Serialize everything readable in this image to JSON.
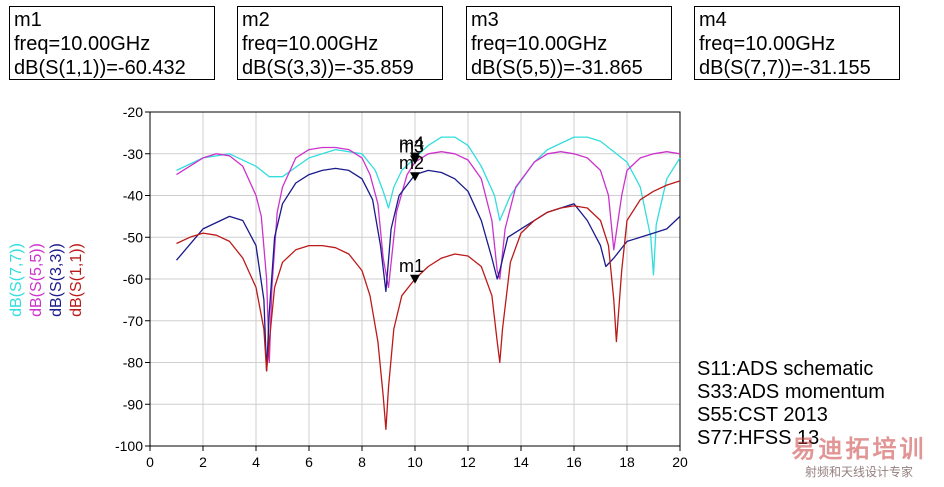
{
  "markers_info": [
    {
      "id": "m1",
      "freq_text": "freq=10.00GHz",
      "value_text": "dB(S(1,1))=-60.432"
    },
    {
      "id": "m2",
      "freq_text": "freq=10.00GHz",
      "value_text": "dB(S(3,3))=-35.859"
    },
    {
      "id": "m3",
      "freq_text": "freq=10.00GHz",
      "value_text": "dB(S(5,5))=-31.865"
    },
    {
      "id": "m4",
      "freq_text": "freq=10.00GHz",
      "value_text": "dB(S(7,7))=-31.155"
    }
  ],
  "notes": [
    "S11:ADS schematic",
    "S33:ADS momentum",
    "S55:CST 2013",
    "S77:HFSS 13"
  ],
  "watermark": {
    "main": "易迪拓培训",
    "sub": "射频和天线设计专家"
  },
  "chart_data": {
    "type": "line",
    "title": "",
    "xlabel": "",
    "xlim": [
      0,
      20
    ],
    "ylim": [
      -100,
      -20
    ],
    "xticks": [
      0,
      2,
      4,
      6,
      8,
      10,
      12,
      14,
      16,
      18,
      20
    ],
    "yticks": [
      -100,
      -90,
      -80,
      -70,
      -60,
      -50,
      -40,
      -30,
      -20
    ],
    "grid": true,
    "series": [
      {
        "name": "dB(S(7,7))",
        "color": "#33dddd",
        "x": [
          1.0,
          2.0,
          3.0,
          4.0,
          4.5,
          5.0,
          6.0,
          7.0,
          8.0,
          8.5,
          8.8,
          9.0,
          9.2,
          9.5,
          10.0,
          10.5,
          11.0,
          11.5,
          12.0,
          12.5,
          13.0,
          13.2,
          13.6,
          14.5,
          15.0,
          16.0,
          16.5,
          17.0,
          18.0,
          18.5,
          18.9,
          19.0,
          19.1,
          19.5,
          20.0
        ],
        "y": [
          -34,
          -31,
          -30,
          -33,
          -35.5,
          -35.5,
          -31,
          -29,
          -30,
          -34,
          -39,
          -43,
          -38,
          -34,
          -31,
          -28,
          -26,
          -26,
          -28,
          -33,
          -40,
          -46,
          -40,
          -32,
          -29,
          -26,
          -26,
          -27,
          -32,
          -38,
          -50,
          -59,
          -47,
          -36,
          -31
        ]
      },
      {
        "name": "dB(S(5,5))",
        "color": "#cc33cc",
        "x": [
          1.0,
          2.0,
          2.5,
          3.0,
          3.5,
          4.0,
          4.2,
          4.4,
          4.5,
          4.6,
          4.8,
          5.0,
          5.5,
          6.0,
          6.5,
          7.0,
          7.5,
          8.0,
          8.3,
          8.6,
          8.8,
          9.0,
          9.3,
          9.7,
          10.0,
          10.5,
          11.0,
          11.5,
          12.0,
          12.5,
          12.9,
          13.1,
          13.2,
          13.4,
          13.8,
          14.5,
          15.0,
          15.5,
          16.0,
          16.5,
          17.0,
          17.3,
          17.5,
          17.8,
          18.0,
          18.5,
          19.0,
          19.5,
          20.0
        ],
        "y": [
          -35,
          -31,
          -30,
          -30.5,
          -33,
          -40,
          -45,
          -60,
          -80,
          -62,
          -44,
          -38,
          -31,
          -29,
          -28.5,
          -28.5,
          -29,
          -31,
          -35,
          -42,
          -55,
          -62,
          -44,
          -35,
          -32,
          -30,
          -29.5,
          -30,
          -31.5,
          -36,
          -46,
          -58,
          -60,
          -48,
          -38,
          -32,
          -30,
          -29.5,
          -30,
          -31,
          -34,
          -40,
          -53,
          -40,
          -34,
          -31,
          -30,
          -29.5,
          -30
        ]
      },
      {
        "name": "dB(S(3,3))",
        "color": "#1a1a8c",
        "x": [
          1.0,
          2.0,
          3.0,
          3.5,
          4.0,
          4.3,
          4.4,
          4.5,
          4.7,
          5.0,
          5.5,
          6.0,
          6.5,
          7.0,
          7.5,
          8.0,
          8.4,
          8.7,
          8.9,
          9.1,
          9.4,
          10.0,
          10.5,
          11.0,
          11.5,
          12.0,
          12.5,
          12.9,
          13.1,
          13.2,
          13.5,
          14.0,
          15.0,
          16.0,
          16.5,
          17.0,
          17.2,
          17.5,
          18.0,
          18.5,
          19.0,
          19.5,
          20.0
        ],
        "y": [
          -55.5,
          -48,
          -45,
          -46,
          -52,
          -65,
          -82,
          -68,
          -50,
          -42,
          -37,
          -35,
          -34,
          -33.5,
          -34,
          -36,
          -41,
          -52,
          -63,
          -48,
          -40,
          -35,
          -34,
          -34.5,
          -36,
          -39,
          -46,
          -55,
          -60,
          -58,
          -50,
          -48,
          -44,
          -42,
          -46,
          -52,
          -57,
          -55,
          -51,
          -50,
          -49,
          -48,
          -45
        ]
      },
      {
        "name": "dB(S(1,1))",
        "color": "#bb1a1a",
        "x": [
          1.0,
          1.5,
          2.0,
          2.5,
          3.0,
          3.5,
          4.0,
          4.3,
          4.4,
          4.5,
          4.7,
          5.0,
          5.5,
          6.0,
          6.5,
          7.0,
          7.5,
          8.0,
          8.3,
          8.6,
          8.8,
          8.9,
          9.0,
          9.2,
          9.5,
          10.0,
          10.5,
          11.0,
          11.5,
          12.0,
          12.5,
          12.9,
          13.1,
          13.2,
          13.3,
          13.6,
          14.0,
          14.5,
          15.0,
          15.5,
          16.0,
          16.5,
          17.0,
          17.3,
          17.5,
          17.6,
          17.8,
          18.0,
          18.5,
          19.0,
          19.5,
          20.0
        ],
        "y": [
          -51.5,
          -50,
          -49,
          -49.5,
          -51,
          -55,
          -62,
          -72,
          -82,
          -75,
          -62,
          -56,
          -53,
          -52,
          -52,
          -52.5,
          -54,
          -58,
          -64,
          -75,
          -88,
          -96,
          -86,
          -72,
          -64,
          -60,
          -57,
          -55,
          -54,
          -54.5,
          -57,
          -64,
          -75,
          -80,
          -72,
          -56,
          -49,
          -46,
          -44,
          -43,
          -42.5,
          -43,
          -46,
          -52,
          -65,
          -75,
          -58,
          -46,
          -41,
          -39,
          -37.5,
          -36.5
        ]
      }
    ],
    "markers": [
      {
        "label": "m1",
        "x": 10.0,
        "y": -60.432
      },
      {
        "label": "m2",
        "x": 10.0,
        "y": -35.859
      },
      {
        "label": "m3",
        "x": 10.0,
        "y": -31.865
      },
      {
        "label": "m4",
        "x": 10.0,
        "y": -31.155
      }
    ]
  }
}
